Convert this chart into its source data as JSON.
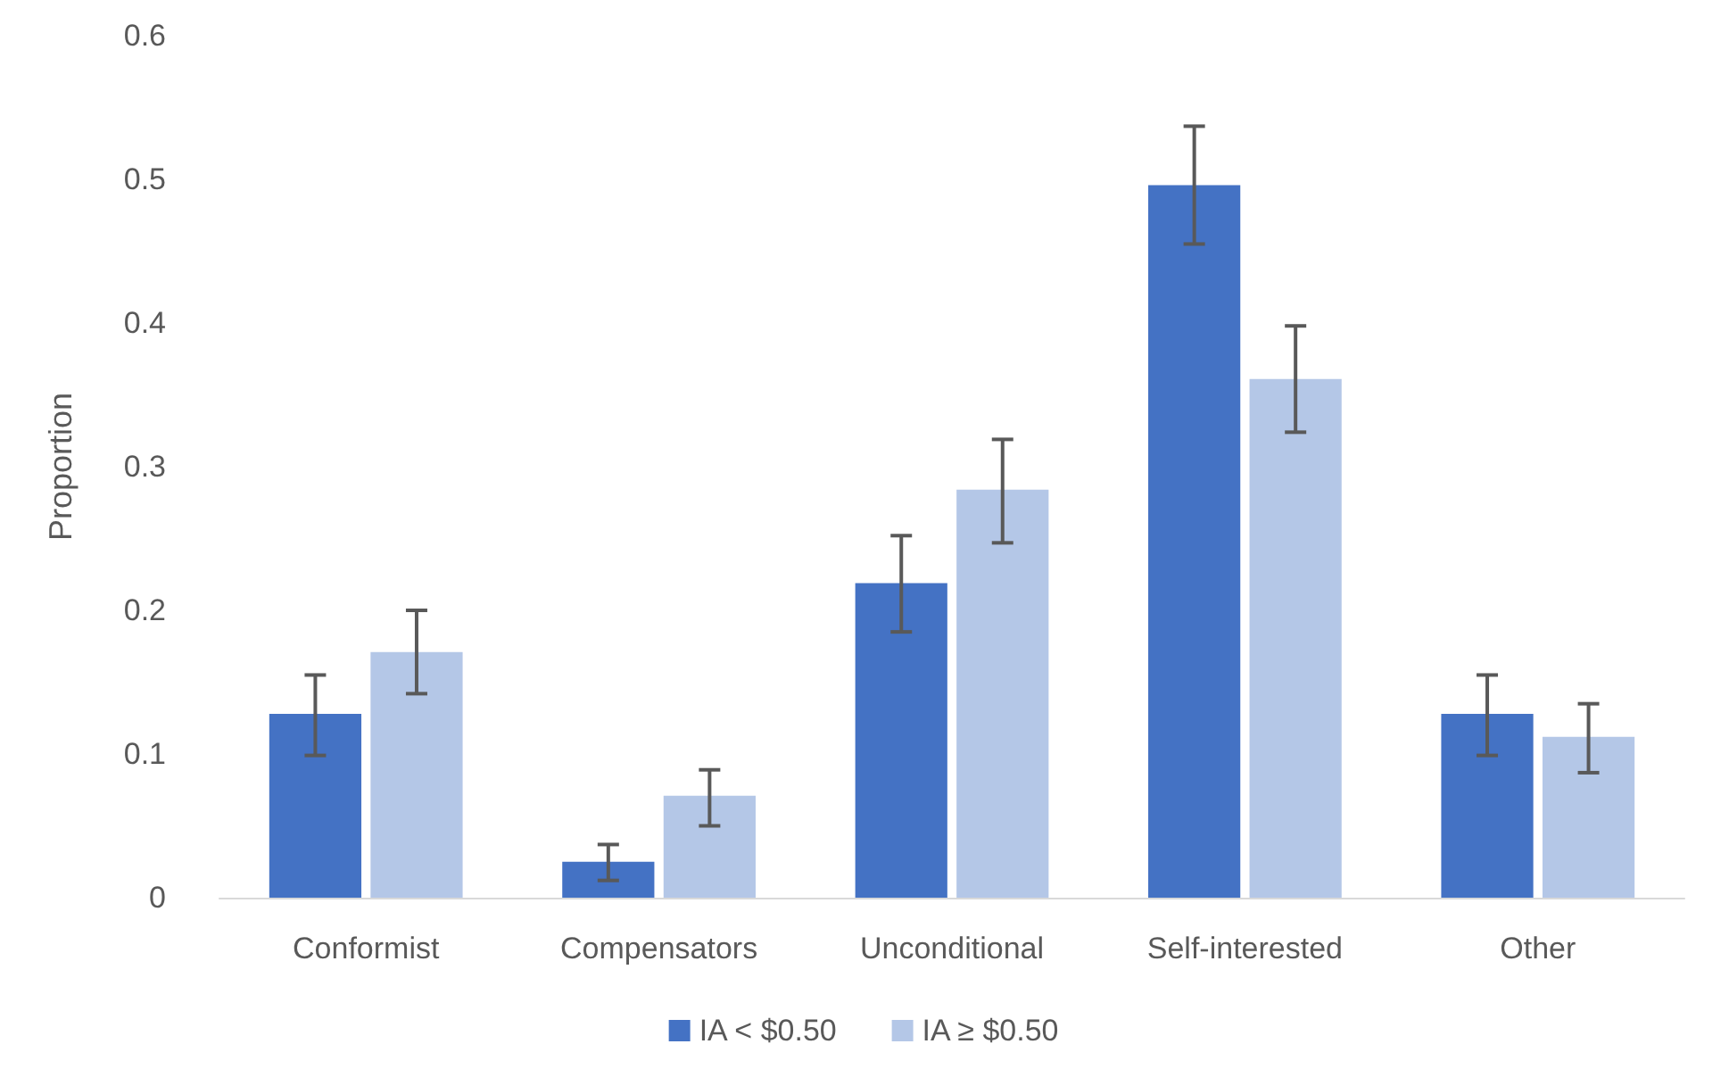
{
  "chart_data": {
    "type": "bar",
    "ylabel": "Proportion",
    "categories": [
      "Conformist",
      "Compensators",
      "Unconditional",
      "Self-interested",
      "Other"
    ],
    "series": [
      {
        "name": "IA < $0.50",
        "color": "#4472c4",
        "values": [
          0.128,
          0.025,
          0.219,
          0.496,
          0.128
        ],
        "errors": [
          [
            0.099,
            0.155
          ],
          [
            0.012,
            0.037
          ],
          [
            0.185,
            0.252
          ],
          [
            0.455,
            0.537
          ],
          [
            0.099,
            0.155
          ]
        ]
      },
      {
        "name": "IA ≥ $0.50",
        "color": "#b4c7e7",
        "values": [
          0.171,
          0.071,
          0.284,
          0.361,
          0.112
        ],
        "errors": [
          [
            0.142,
            0.2
          ],
          [
            0.05,
            0.089
          ],
          [
            0.247,
            0.319
          ],
          [
            0.324,
            0.398
          ],
          [
            0.087,
            0.135
          ]
        ]
      }
    ],
    "ylim": [
      0,
      0.6
    ],
    "yticks": [
      0,
      0.1,
      0.2,
      0.3,
      0.4,
      0.5,
      0.6
    ],
    "grid": false,
    "legend": "bottom"
  }
}
